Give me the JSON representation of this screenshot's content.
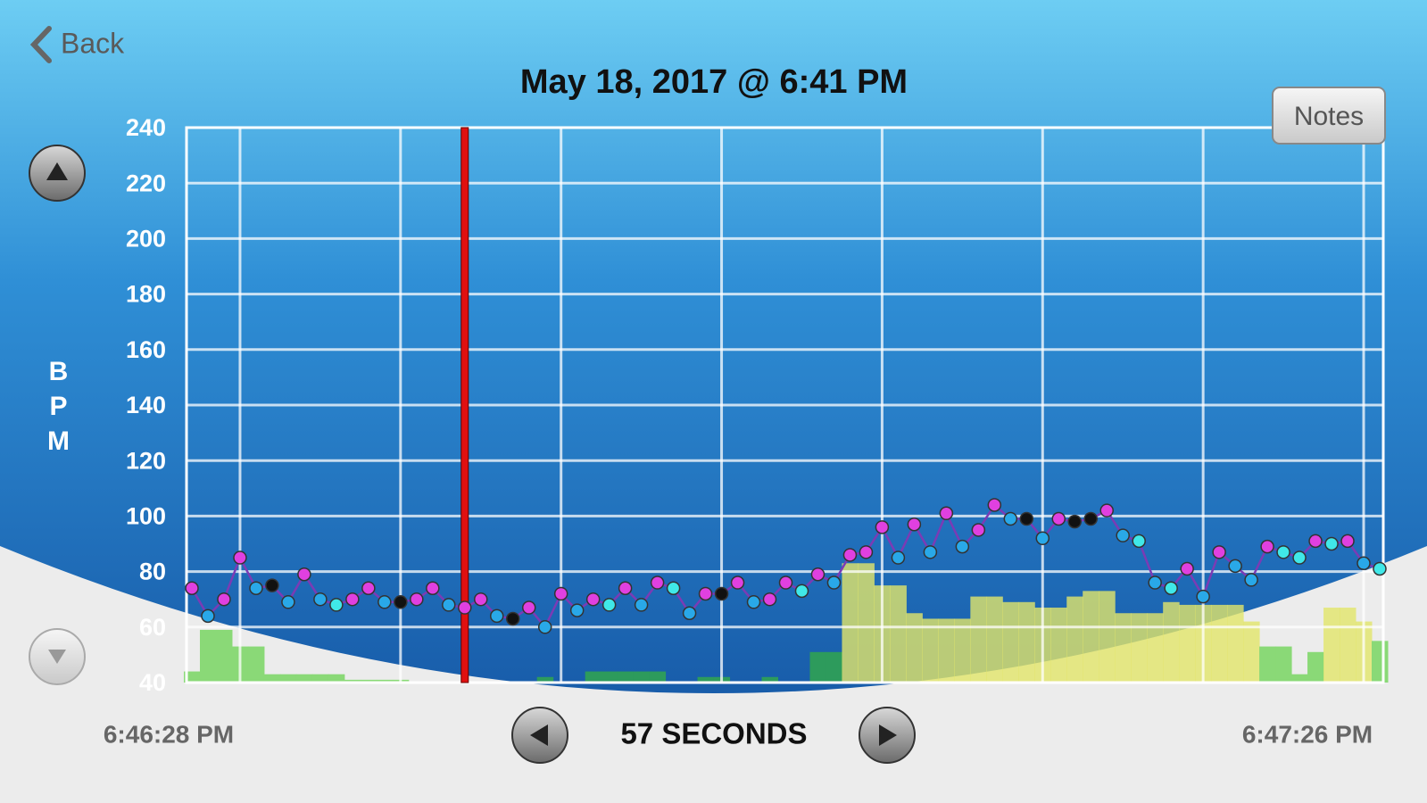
{
  "nav": {
    "back": "Back",
    "notes": "Notes"
  },
  "title": "May 18, 2017 @ 6:41 PM",
  "chart_data": {
    "type": "line",
    "y_label": "BPM",
    "ylim": [
      40,
      240
    ],
    "yticks": [
      40,
      60,
      80,
      100,
      120,
      140,
      160,
      180,
      200,
      220,
      240
    ],
    "grid": true,
    "series": [
      {
        "color": "#7b3bb5",
        "values": [
          74,
          64,
          70,
          85,
          74,
          75,
          69,
          79,
          70,
          68,
          70,
          74,
          69,
          69,
          70,
          74,
          68,
          67,
          70,
          64,
          63,
          67,
          60,
          72,
          66,
          70,
          68,
          74,
          68,
          76,
          74,
          65,
          72,
          72,
          76,
          69,
          70,
          76,
          73,
          79,
          76,
          86,
          87,
          96,
          85,
          97,
          87,
          101,
          89,
          95,
          104,
          99,
          99,
          92,
          99,
          98,
          99,
          102,
          93,
          91,
          76,
          74,
          81,
          71,
          87,
          82,
          77,
          89,
          87,
          85,
          91,
          90,
          91,
          83,
          81
        ],
        "point_colors": [
          "#e040e0",
          "#29a8e8",
          "#e040e0",
          "#e040e0",
          "#29a8e8",
          "#111111",
          "#29a8e8",
          "#e040e0",
          "#29a8e8",
          "#40e8e8",
          "#e040e0",
          "#e040e0",
          "#29a8e8",
          "#111111",
          "#e040e0",
          "#e040e0",
          "#29a8e8",
          "#e040e0",
          "#e040e0",
          "#29a8e8",
          "#111111",
          "#e040e0",
          "#29a8e8",
          "#e040e0",
          "#29a8e8",
          "#e040e0",
          "#40e8e8",
          "#e040e0",
          "#29a8e8",
          "#e040e0",
          "#40e8e8",
          "#29a8e8",
          "#e040e0",
          "#111111",
          "#e040e0",
          "#29a8e8",
          "#e040e0",
          "#e040e0",
          "#40e8e8",
          "#e040e0",
          "#29a8e8",
          "#e040e0",
          "#e040e0",
          "#e040e0",
          "#29a8e8",
          "#e040e0",
          "#29a8e8",
          "#e040e0",
          "#29a8e8",
          "#e040e0",
          "#e040e0",
          "#29a8e8",
          "#111111",
          "#29a8e8",
          "#e040e0",
          "#111111",
          "#111111",
          "#e040e0",
          "#29a8e8",
          "#40e8e8",
          "#29a8e8",
          "#40e8e8",
          "#e040e0",
          "#29a8e8",
          "#e040e0",
          "#29a8e8",
          "#29a8e8",
          "#e040e0",
          "#40e8e8",
          "#40e8e8",
          "#e040e0",
          "#40e8e8",
          "#e040e0",
          "#29a8e8",
          "#40e8e8"
        ]
      }
    ],
    "bars": {
      "values": [
        44,
        59,
        59,
        53,
        53,
        43,
        43,
        43,
        43,
        43,
        41,
        41,
        41,
        41,
        40,
        40,
        40,
        40,
        40,
        40,
        40,
        40,
        42,
        40,
        40,
        44,
        44,
        44,
        44,
        44,
        40,
        40,
        42,
        42,
        40,
        40,
        42,
        40,
        40,
        51,
        51,
        83,
        83,
        75,
        75,
        65,
        63,
        63,
        63,
        71,
        71,
        69,
        69,
        67,
        67,
        71,
        73,
        73,
        65,
        65,
        65,
        69,
        68,
        68,
        68,
        68,
        62,
        53,
        53,
        43,
        51,
        67,
        67,
        62,
        55
      ],
      "colors": [
        "#8ad977",
        "#8ad977",
        "#8ad977",
        "#8ad977",
        "#8ad977",
        "#8ad977",
        "#8ad977",
        "#8ad977",
        "#8ad977",
        "#8ad977",
        "#8ad977",
        "#8ad977",
        "#8ad977",
        "#8ad977",
        "#2d9b5c",
        "#2d9b5c",
        "#2d9b5c",
        "#2d9b5c",
        "#2d9b5c",
        "#2d9b5c",
        "#2d9b5c",
        "#2d9b5c",
        "#2d9b5c",
        "#2d9b5c",
        "#2d9b5c",
        "#2d9b5c",
        "#2d9b5c",
        "#2d9b5c",
        "#2d9b5c",
        "#2d9b5c",
        "#2d9b5c",
        "#2d9b5c",
        "#2d9b5c",
        "#2d9b5c",
        "#2d9b5c",
        "#2d9b5c",
        "#2d9b5c",
        "#2d9b5c",
        "#2d9b5c",
        "#2d9b5c",
        "#2d9b5c",
        "#e2e66acc",
        "#e2e66acc",
        "#e2e66acc",
        "#e2e66acc",
        "#e2e66acc",
        "#e2e66acc",
        "#e2e66acc",
        "#e2e66acc",
        "#e2e66acc",
        "#e2e66acc",
        "#e2e66acc",
        "#e2e66acc",
        "#e2e66acc",
        "#e2e66acc",
        "#e2e66acc",
        "#e2e66acc",
        "#e2e66acc",
        "#e2e66acc",
        "#e2e66acc",
        "#e2e66acc",
        "#e2e66acc",
        "#e2e66acc",
        "#e2e66acc",
        "#e2e66acc",
        "#e2e66acc",
        "#e2e66acc",
        "#8ad977",
        "#8ad977",
        "#8ad977",
        "#8ad977",
        "#e2e66acc",
        "#e2e66acc",
        "#e2e66acc",
        "#8ad977"
      ]
    },
    "x_start_label": "6:46:28 PM",
    "x_end_label": "6:47:26 PM"
  },
  "footer": {
    "duration": "57 SECONDS"
  }
}
